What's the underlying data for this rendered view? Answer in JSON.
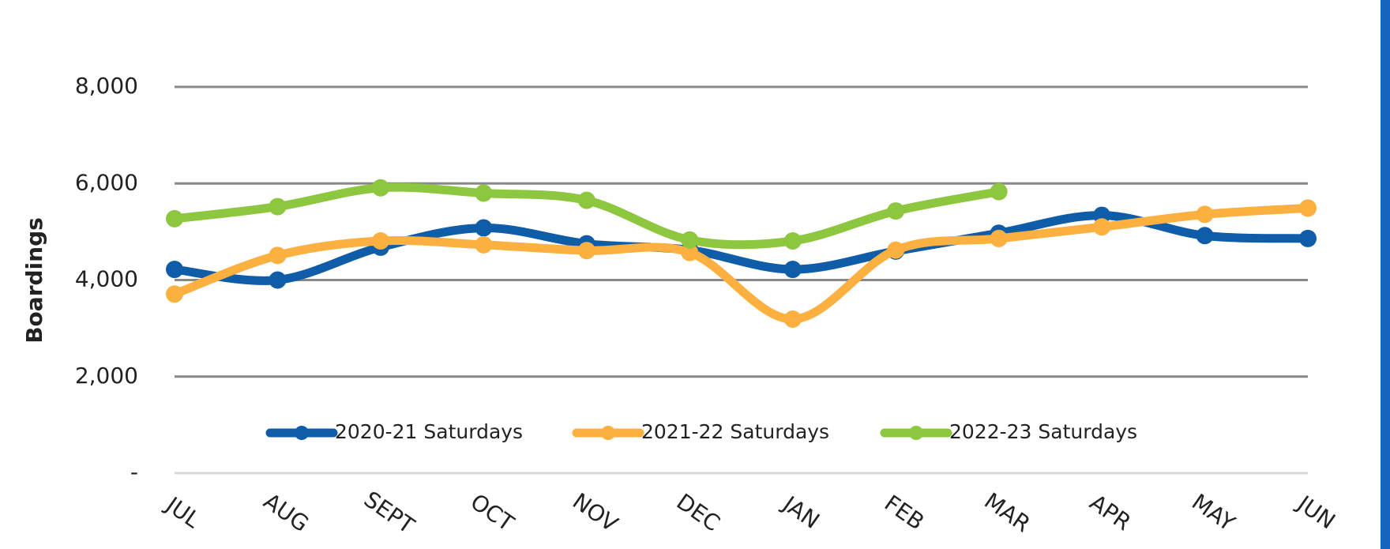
{
  "chart_data": {
    "type": "line",
    "y_label": "Boardings",
    "categories": [
      "JUL",
      "AUG",
      "SEPT",
      "OCT",
      "NOV",
      "DEC",
      "JAN",
      "FEB",
      "MAR",
      "APR",
      "MAY",
      "JUN"
    ],
    "series": [
      {
        "name": "2020-21 Saturdays",
        "color": "#0f5ca8",
        "values": [
          4220,
          4000,
          4680,
          5080,
          4750,
          4620,
          4220,
          4600,
          4970,
          5340,
          4920,
          4860
        ]
      },
      {
        "name": "2021-22 Saturdays",
        "color": "#fbb040",
        "values": [
          3710,
          4510,
          4810,
          4730,
          4610,
          4570,
          3190,
          4620,
          4860,
          5100,
          5360,
          5490
        ]
      },
      {
        "name": "2022-23 Saturdays",
        "color": "#8dc63f",
        "values": [
          5270,
          5520,
          5910,
          5800,
          5650,
          4830,
          4810,
          5430,
          5830,
          null,
          null,
          null
        ]
      }
    ],
    "ylim": [
      0,
      8000
    ],
    "yticks": [
      {
        "value": 0,
        "label": "-"
      },
      {
        "value": 2000,
        "label": "2,000"
      },
      {
        "value": 4000,
        "label": "4,000"
      },
      {
        "value": 6000,
        "label": "6,000"
      },
      {
        "value": 8000,
        "label": "8,000"
      }
    ],
    "grid": true
  }
}
